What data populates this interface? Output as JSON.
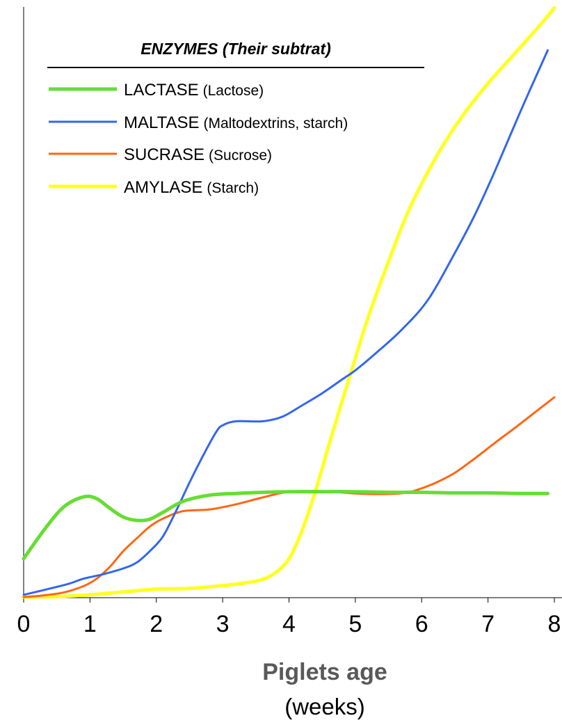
{
  "chart_data": {
    "type": "line",
    "xlabel": "Piglets age",
    "xlabel_unit": "(weeks)",
    "ylabel": "",
    "xlim": [
      0,
      8
    ],
    "ylim": [
      0,
      100
    ],
    "x_ticks": [
      "0",
      "1",
      "2",
      "3",
      "4",
      "5",
      "6",
      "7",
      "8"
    ],
    "grid": false,
    "legend": {
      "title": "ENZYMES (Their subtrat)",
      "placement": "top-left"
    },
    "series": [
      {
        "name": "LACTASE",
        "substrate": "(Lactose)",
        "color": "#66dd33",
        "x": [
          0,
          0.3,
          0.6,
          0.9,
          1.1,
          1.3,
          1.5,
          1.7,
          1.9,
          2.1,
          2.4,
          2.8,
          3.2,
          3.6,
          4,
          4.5,
          5,
          5.5,
          6,
          6.5,
          7,
          7.5,
          7.9
        ],
        "values": [
          6.8,
          11.7,
          15.8,
          17.6,
          17.3,
          15.6,
          14.1,
          13.5,
          13.7,
          14.9,
          16.8,
          17.9,
          18.2,
          18.4,
          18.5,
          18.5,
          18.5,
          18.4,
          18.4,
          18.3,
          18.3,
          18.2,
          18.2
        ]
      },
      {
        "name": "MALTASE",
        "substrate": "(Maltodextrins, starch)",
        "color": "#3366ee",
        "x": [
          0,
          0.4,
          0.7,
          0.9,
          1.2,
          1.5,
          1.7,
          1.9,
          2.1,
          2.3,
          2.5,
          2.7,
          2.9,
          3,
          3.2,
          3.6,
          3.9,
          4.2,
          4.5,
          4.8,
          5,
          5.3,
          5.7,
          6.1,
          6.5,
          6.8,
          7.1,
          7.5,
          7.9
        ],
        "values": [
          0.5,
          1.6,
          2.5,
          3.3,
          4.1,
          5.1,
          6.1,
          8.1,
          10.7,
          15.2,
          20.1,
          24.7,
          28.9,
          30.1,
          30.8,
          30.8,
          31.6,
          33.6,
          35.7,
          38.1,
          39.7,
          42.6,
          46.8,
          52.1,
          60.2,
          66.8,
          74.4,
          85.2,
          95.6
        ]
      },
      {
        "name": "SUCRASE",
        "substrate": "(Sucrose)",
        "color": "#ff6611",
        "x": [
          0,
          0.3,
          0.6,
          0.9,
          1.1,
          1.3,
          1.5,
          1.7,
          1.9,
          2.1,
          2.4,
          2.8,
          3.2,
          3.6,
          4,
          4.5,
          5,
          5.5,
          5.8,
          6,
          6.2,
          6.5,
          6.8,
          7.1,
          7.4,
          7.7,
          8
        ],
        "values": [
          0.1,
          0.4,
          0.9,
          2.0,
          3.3,
          5.4,
          8.1,
          10.3,
          12.4,
          13.8,
          15.1,
          15.4,
          16.3,
          17.5,
          18.5,
          18.6,
          18.2,
          18.1,
          18.4,
          19.1,
          20.0,
          21.8,
          24.3,
          27.0,
          29.6,
          32.3,
          35.0
        ]
      },
      {
        "name": "AMYLASE",
        "substrate": "(Starch)",
        "color": "#ffff22",
        "x": [
          0,
          0.5,
          1,
          1.5,
          2,
          2.5,
          3,
          3.3,
          3.6,
          3.8,
          4,
          4.2,
          4.4,
          4.6,
          4.8,
          5,
          5.2,
          5.5,
          5.8,
          6.2,
          6.6,
          7,
          7.4,
          7.8,
          8
        ],
        "values": [
          0.1,
          0.2,
          0.5,
          1.0,
          1.5,
          1.6,
          2.1,
          2.5,
          3.2,
          4.4,
          6.8,
          11.8,
          18.7,
          26.6,
          34.3,
          41.8,
          49.2,
          58.7,
          67.5,
          76.6,
          83.9,
          89.8,
          95.0,
          100.2,
          103.0
        ]
      }
    ]
  }
}
